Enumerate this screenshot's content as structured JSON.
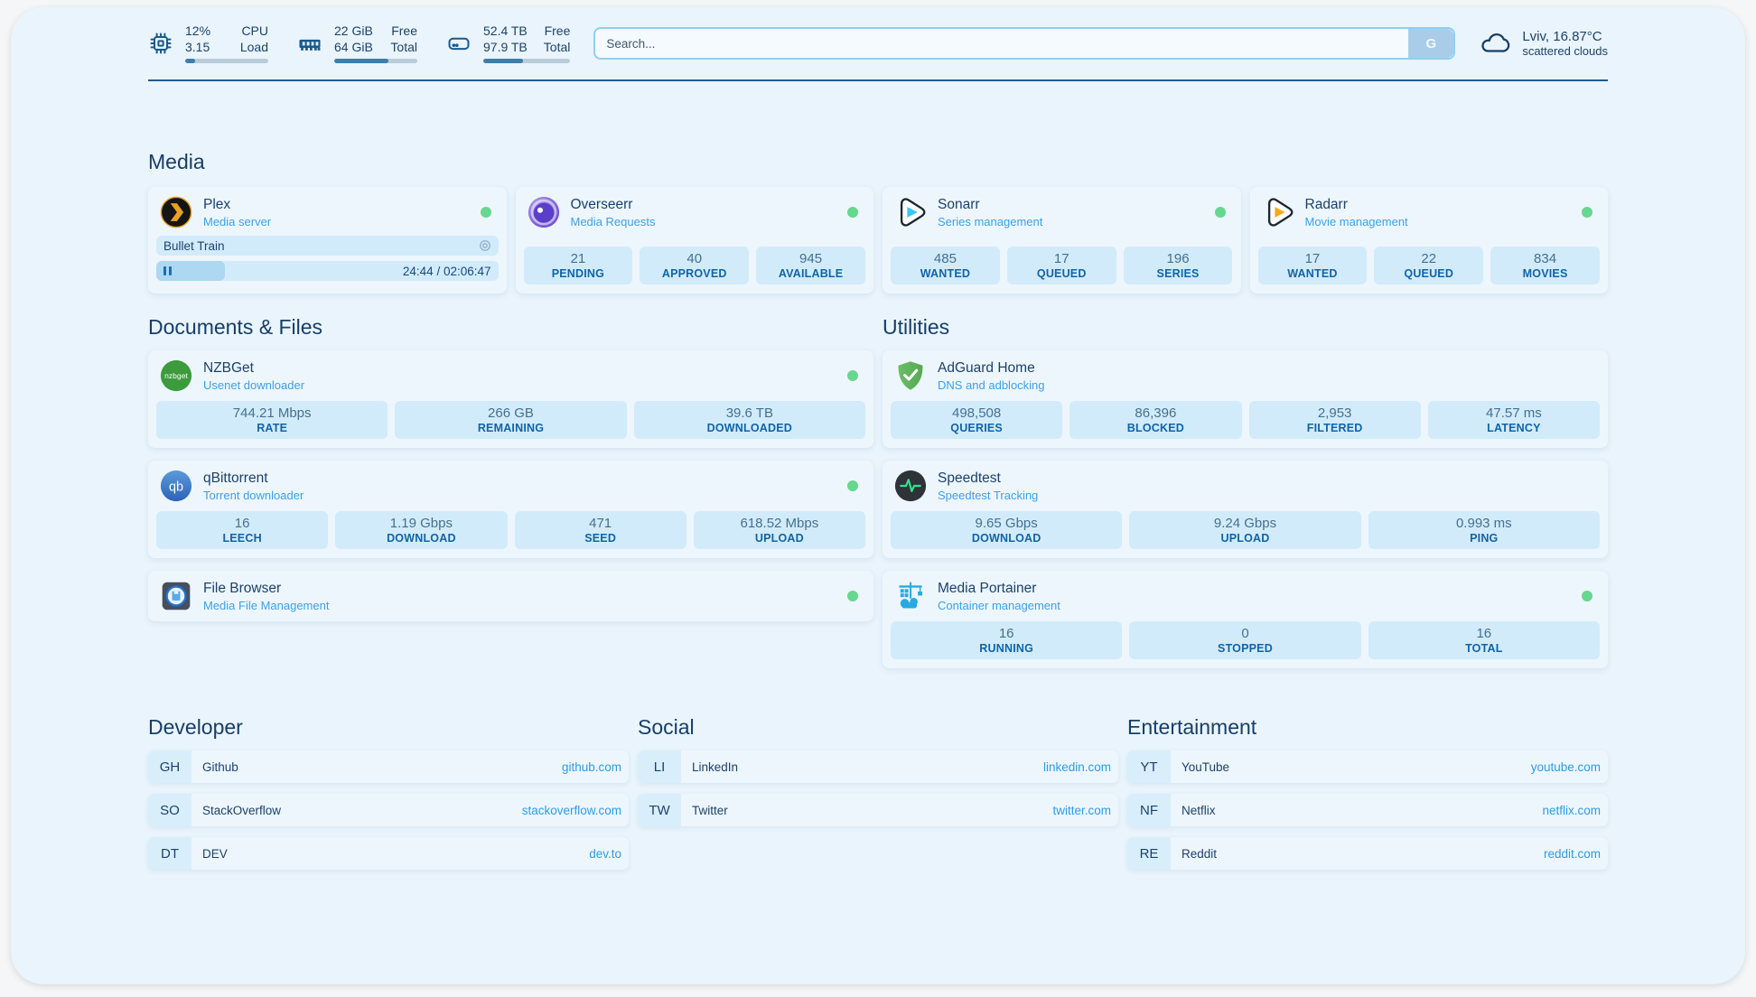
{
  "topbar": {
    "metrics": [
      {
        "icon": "cpu-icon",
        "values": [
          "12%",
          "3.15"
        ],
        "labels": [
          "CPU",
          "Load"
        ],
        "progress": 12
      },
      {
        "icon": "ram-icon",
        "values": [
          "22 GiB",
          "64 GiB"
        ],
        "labels": [
          "Free",
          "Total"
        ],
        "progress": 65
      },
      {
        "icon": "disk-icon",
        "values": [
          "52.4 TB",
          "97.9 TB"
        ],
        "labels": [
          "Free",
          "Total"
        ],
        "progress": 46
      }
    ],
    "search": {
      "placeholder": "Search...",
      "button_label": "G"
    },
    "weather": {
      "location": "Lviv, 16.87°C",
      "condition": "scattered clouds"
    }
  },
  "sections": {
    "media": "Media",
    "documents": "Documents & Files",
    "utilities": "Utilities",
    "developer": "Developer",
    "social": "Social",
    "entertainment": "Entertainment"
  },
  "apps": {
    "plex": {
      "name": "Plex",
      "desc": "Media server",
      "status": "online",
      "now_playing": {
        "title": "Bullet Train",
        "time": "24:44 / 02:06:47",
        "progress": 20
      }
    },
    "overseerr": {
      "name": "Overseerr",
      "desc": "Media Requests",
      "status": "online",
      "stats": [
        {
          "value": "21",
          "label": "PENDING"
        },
        {
          "value": "40",
          "label": "APPROVED"
        },
        {
          "value": "945",
          "label": "AVAILABLE"
        }
      ]
    },
    "sonarr": {
      "name": "Sonarr",
      "desc": "Series management",
      "status": "online",
      "stats": [
        {
          "value": "485",
          "label": "WANTED"
        },
        {
          "value": "17",
          "label": "QUEUED"
        },
        {
          "value": "196",
          "label": "SERIES"
        }
      ]
    },
    "radarr": {
      "name": "Radarr",
      "desc": "Movie management",
      "status": "online",
      "stats": [
        {
          "value": "17",
          "label": "WANTED"
        },
        {
          "value": "22",
          "label": "QUEUED"
        },
        {
          "value": "834",
          "label": "MOVIES"
        }
      ]
    },
    "nzbget": {
      "name": "NZBGet",
      "desc": "Usenet downloader",
      "status": "online",
      "stats": [
        {
          "value": "744.21 Mbps",
          "label": "RATE"
        },
        {
          "value": "266 GB",
          "label": "REMAINING"
        },
        {
          "value": "39.6 TB",
          "label": "DOWNLOADED"
        }
      ]
    },
    "qbittorrent": {
      "name": "qBittorrent",
      "desc": "Torrent downloader",
      "status": "online",
      "stats": [
        {
          "value": "16",
          "label": "LEECH"
        },
        {
          "value": "1.19 Gbps",
          "label": "DOWNLOAD"
        },
        {
          "value": "471",
          "label": "SEED"
        },
        {
          "value": "618.52 Mbps",
          "label": "UPLOAD"
        }
      ]
    },
    "filebrowser": {
      "name": "File Browser",
      "desc": "Media File Management",
      "status": "online"
    },
    "adguard": {
      "name": "AdGuard Home",
      "desc": "DNS and adblocking",
      "stats": [
        {
          "value": "498,508",
          "label": "QUERIES"
        },
        {
          "value": "86,396",
          "label": "BLOCKED"
        },
        {
          "value": "2,953",
          "label": "FILTERED"
        },
        {
          "value": "47.57 ms",
          "label": "LATENCY"
        }
      ]
    },
    "speedtest": {
      "name": "Speedtest",
      "desc": "Speedtest Tracking",
      "stats": [
        {
          "value": "9.65 Gbps",
          "label": "DOWNLOAD"
        },
        {
          "value": "9.24 Gbps",
          "label": "UPLOAD"
        },
        {
          "value": "0.993 ms",
          "label": "PING"
        }
      ]
    },
    "portainer": {
      "name": "Media Portainer",
      "desc": "Container management",
      "status": "online",
      "stats": [
        {
          "value": "16",
          "label": "RUNNING"
        },
        {
          "value": "0",
          "label": "STOPPED"
        },
        {
          "value": "16",
          "label": "TOTAL"
        }
      ]
    }
  },
  "links": {
    "developer": [
      {
        "abbr": "GH",
        "name": "Github",
        "url": "github.com"
      },
      {
        "abbr": "SO",
        "name": "StackOverflow",
        "url": "stackoverflow.com"
      },
      {
        "abbr": "DT",
        "name": "DEV",
        "url": "dev.to"
      }
    ],
    "social": [
      {
        "abbr": "LI",
        "name": "LinkedIn",
        "url": "linkedin.com"
      },
      {
        "abbr": "TW",
        "name": "Twitter",
        "url": "twitter.com"
      }
    ],
    "entertainment": [
      {
        "abbr": "YT",
        "name": "YouTube",
        "url": "youtube.com"
      },
      {
        "abbr": "NF",
        "name": "Netflix",
        "url": "netflix.com"
      },
      {
        "abbr": "RE",
        "name": "Reddit",
        "url": "reddit.com"
      }
    ]
  },
  "colors": {
    "status_green": "#67d78f",
    "accent_blue": "#2d9ce8",
    "navy_text": "#1c416b",
    "progress_fill": "#3d7fa9",
    "stat_box_bg": "#cfe9f8"
  }
}
